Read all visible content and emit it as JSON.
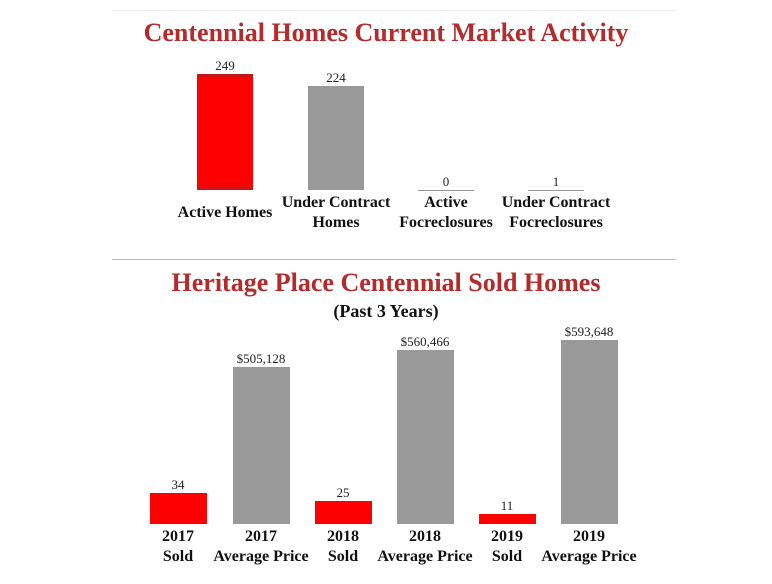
{
  "colors": {
    "title": "#b52a2a",
    "red": "#ff0000",
    "gray": "#999999"
  },
  "chart_data": [
    {
      "type": "bar",
      "title": "Centennial Homes Current Market Activity",
      "categories": [
        [
          "Active Homes"
        ],
        [
          "Under Contract",
          "Homes"
        ],
        [
          "Active",
          "Focreclosures"
        ],
        [
          "Under Contract",
          "Focreclosures"
        ]
      ],
      "values": [
        249,
        224,
        0,
        1
      ],
      "value_labels": [
        "249",
        "224",
        "0",
        "1"
      ],
      "bar_colors": [
        "red",
        "gray",
        "gray",
        "gray"
      ],
      "ylim": [
        0,
        249
      ],
      "legend": "none",
      "grid": false
    },
    {
      "type": "bar",
      "title": "Heritage Place Centennial Sold Homes",
      "subtitle": "(Past 3 Years)",
      "categories": [
        [
          "2017",
          "Sold"
        ],
        [
          "2017",
          "Average Price"
        ],
        [
          "2018",
          "Sold"
        ],
        [
          "2018",
          "Average Price"
        ],
        [
          "2019",
          "Sold"
        ],
        [
          "2019",
          "Average Price"
        ]
      ],
      "values": [
        34,
        505128,
        25,
        560466,
        11,
        593648
      ],
      "value_labels": [
        "34",
        "$505,128",
        "25",
        "$560,466",
        "11",
        "$593,648"
      ],
      "bar_colors": [
        "red",
        "gray",
        "red",
        "gray",
        "red",
        "gray"
      ],
      "legend": "none",
      "grid": false
    }
  ]
}
